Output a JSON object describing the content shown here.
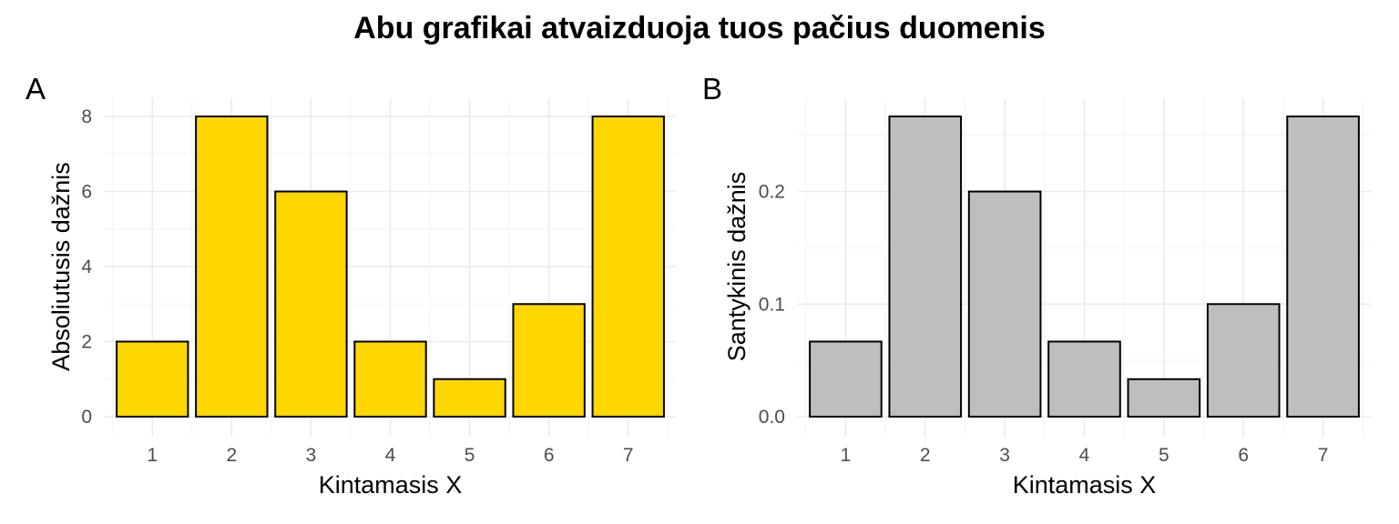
{
  "figure": {
    "title": "Abu grafikai atvaizduoja tuos pačius duomenis"
  },
  "chart_data": [
    {
      "type": "bar",
      "tag": "A",
      "categories": [
        "1",
        "2",
        "3",
        "4",
        "5",
        "6",
        "7"
      ],
      "values": [
        2,
        8,
        6,
        2,
        1,
        3,
        8
      ],
      "xlabel": "Kintamasis X",
      "ylabel": "Absoliutusis dažnis",
      "ylim": [
        0,
        8
      ],
      "yticks": [
        0,
        2,
        4,
        6,
        8
      ],
      "ytick_labels": [
        "0",
        "2",
        "4",
        "6",
        "8"
      ],
      "grid": true,
      "bar_color": "#FFD700",
      "edge_color": "#000000"
    },
    {
      "type": "bar",
      "tag": "B",
      "categories": [
        "1",
        "2",
        "3",
        "4",
        "5",
        "6",
        "7"
      ],
      "values": [
        0.0667,
        0.2667,
        0.2,
        0.0667,
        0.0333,
        0.1,
        0.2667
      ],
      "xlabel": "Kintamasis X",
      "ylabel": "Santykinis dažnis",
      "ylim": [
        0,
        0.2667
      ],
      "yticks": [
        0,
        0.1,
        0.2
      ],
      "ytick_labels": [
        "0.0",
        "0.1",
        "0.2"
      ],
      "grid": true,
      "bar_color": "#BEBEBE",
      "edge_color": "#000000"
    }
  ]
}
